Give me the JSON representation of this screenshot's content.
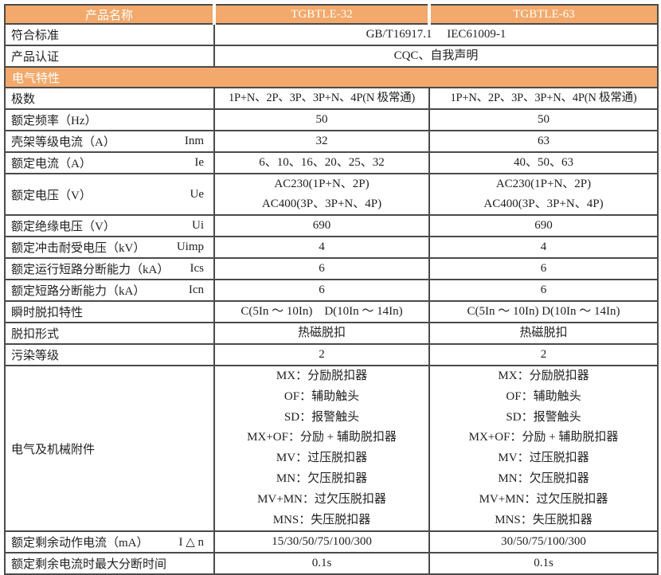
{
  "table": {
    "header": {
      "name_label": "产品名称",
      "model_32": "TGBTLE-32",
      "model_63": "TGBTLE-63"
    },
    "rows": {
      "standards": {
        "label": "符合标准",
        "value": "GB/T16917.1　 IEC61009-1"
      },
      "certification": {
        "label": "产品认证",
        "value": "CQC、自我声明"
      },
      "section_electrical": {
        "title": "电气特性"
      },
      "poles": {
        "label": "极数",
        "v32": "1P+N、2P、3P、3P+N、4P(N 极常通)",
        "v63": "1P+N、2P、3P、3P+N、4P(N 极常通)"
      },
      "frequency": {
        "label": "额定频率（Hz）",
        "v32": "50",
        "v63": "50"
      },
      "frame_current": {
        "label": "壳架等级电流（A）",
        "symbol": "Inm",
        "v32": "32",
        "v63": "63"
      },
      "rated_current": {
        "label": "额定电流（A）",
        "symbol": "Ie",
        "v32": "6、10、16、20、25、32",
        "v63": "40、50、63"
      },
      "rated_voltage": {
        "label": "额定电压（V）",
        "symbol": "Ue",
        "v32": "AC230(1P+N、2P)\nAC400(3P、3P+N、4P)",
        "v63": "AC230(1P+N、2P)\nAC400(3P、3P+N、4P)"
      },
      "insulation_voltage": {
        "label": "额定绝缘电压（V）",
        "symbol": "Ui",
        "v32": "690",
        "v63": "690"
      },
      "impulse_voltage": {
        "label": "额定冲击耐受电压（kV）",
        "symbol": "Uimp",
        "v32": "4",
        "v63": "4"
      },
      "service_breaking": {
        "label": "额定运行短路分断能力（kA）",
        "symbol": "Ics",
        "v32": "6",
        "v63": "6"
      },
      "ultimate_breaking": {
        "label": "额定短路分断能力（kA）",
        "symbol": "Icn",
        "v32": "6",
        "v63": "6"
      },
      "instantaneous_trip": {
        "label": "瞬时脱扣特性",
        "v32": "C(5In ～ 10In)　D(10In ～ 14In)",
        "v63": "C(5In ～ 10In) D(10In ～ 14In)"
      },
      "trip_type": {
        "label": "脱扣形式",
        "v32": "热磁脱扣",
        "v63": "热磁脱扣"
      },
      "pollution_degree": {
        "label": "污染等级",
        "v32": "2",
        "v63": "2"
      },
      "accessories": {
        "label": "电气及机械附件",
        "v32": "MX：分励脱扣器\nOF：辅助触头\nSD：报警触头\nMX+OF：分励 + 辅助脱扣器\nMV：过压脱扣器\nMN：欠压脱扣器\nMV+MN：过欠压脱扣器\nMNS：失压脱扣器",
        "v63": "MX：分励脱扣器\nOF：辅助触头\nSD：报警触头\nMX+OF：分励 + 辅助脱扣器\nMV：过压脱扣器\nMN：欠压脱扣器\nMV+MN：过欠压脱扣器\nMNS：失压脱扣器"
      },
      "residual_current": {
        "label": "额定剩余动作电流（mA）",
        "symbol": "I △ n",
        "v32": "15/30/50/75/100/300",
        "v63": "30/50/75/100/300"
      },
      "breaking_time": {
        "label": "额定剩余电流时最大分断时间",
        "v32": "0.1s",
        "v63": "0.1s"
      }
    },
    "colors": {
      "header_bg": "#F2A96B",
      "header_text": "#FFFFFF",
      "border": "#4A4A4A",
      "text": "#1F1F1F"
    }
  }
}
